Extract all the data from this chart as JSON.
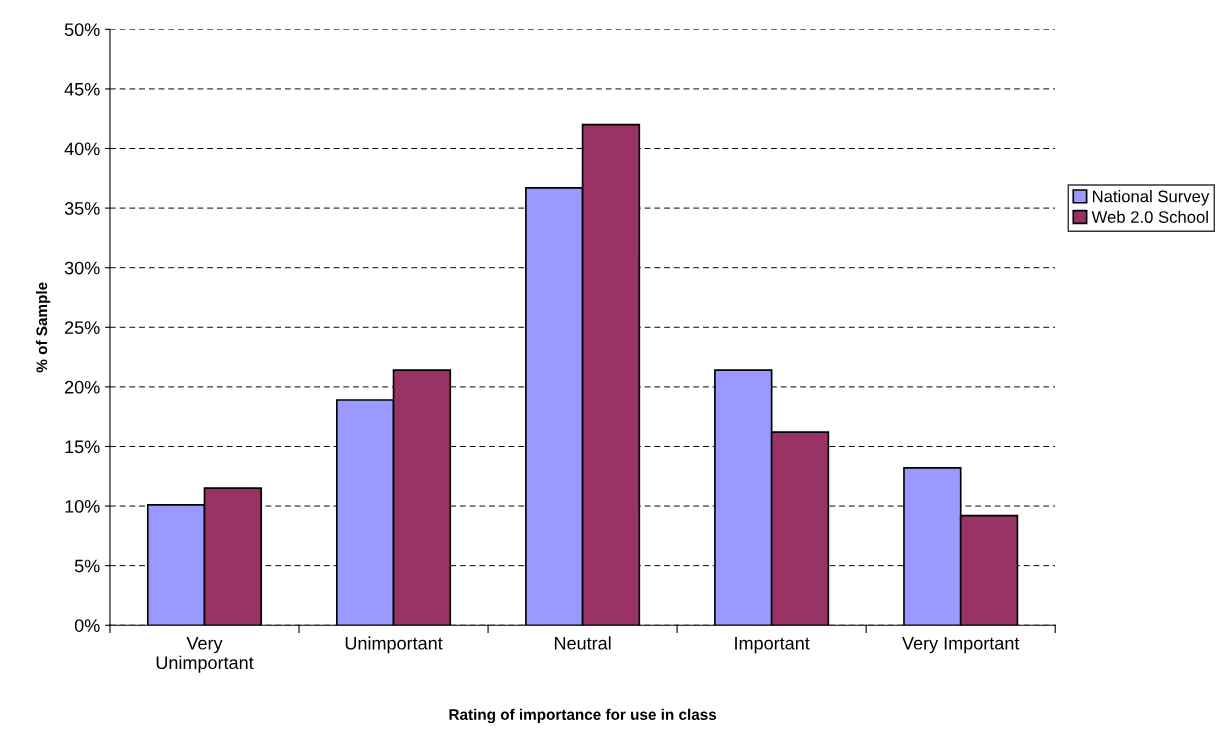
{
  "chart_data": {
    "type": "bar",
    "xlabel": "Rating of importance for use in class",
    "ylabel": "% of Sample",
    "categories": [
      "Very\nUnimportant",
      "Unimportant",
      "Neutral",
      "Important",
      "Very Important"
    ],
    "series": [
      {
        "name": "National Survey",
        "color": "#9999ff",
        "values": [
          10.1,
          18.9,
          36.7,
          21.4,
          13.2
        ]
      },
      {
        "name": "Web 2.0 School",
        "color": "#993366",
        "values": [
          11.5,
          21.4,
          42.0,
          16.2,
          9.2
        ]
      }
    ],
    "ylim": [
      0,
      50
    ],
    "yticks": [
      {
        "value": 0,
        "label": "0%"
      },
      {
        "value": 5,
        "label": "5%"
      },
      {
        "value": 10,
        "label": "10%"
      },
      {
        "value": 15,
        "label": "15%"
      },
      {
        "value": 20,
        "label": "20%"
      },
      {
        "value": 25,
        "label": "25%"
      },
      {
        "value": 30,
        "label": "30%"
      },
      {
        "value": 35,
        "label": "35%"
      },
      {
        "value": 40,
        "label": "40%"
      },
      {
        "value": 45,
        "label": "45%"
      },
      {
        "value": 50,
        "label": "50%"
      }
    ],
    "grid": "y",
    "legend": "right"
  }
}
